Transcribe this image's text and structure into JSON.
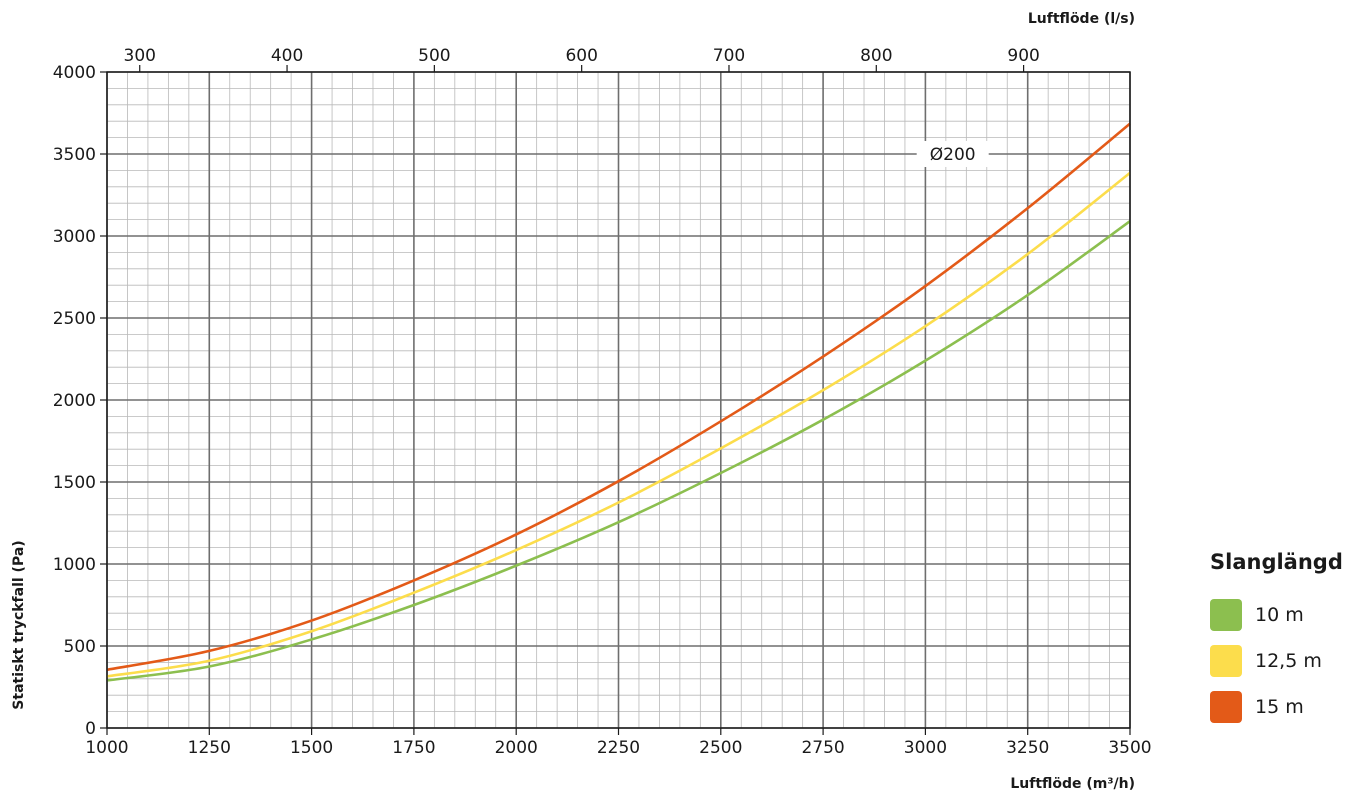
{
  "chart_data": {
    "type": "line",
    "xlabel": "Luftflöde (m³/h)",
    "x2label": "Luftflöde (l/s)",
    "ylabel": "Statiskt tryckfall (Pa)",
    "annotation": "Ø200",
    "xlim": [
      1000,
      3500
    ],
    "ylim": [
      0,
      4000
    ],
    "x2lim_ls": [
      277.78,
      972.22
    ],
    "x_ticks": [
      1000,
      1250,
      1500,
      1750,
      2000,
      2250,
      2500,
      2750,
      3000,
      3250,
      3500
    ],
    "x_tick_labels": [
      "1000",
      "1250",
      "1500",
      "1750",
      "2000",
      "2250",
      "2500",
      "2750",
      "3000",
      "3250",
      "3500"
    ],
    "x2_ticks": [
      300,
      400,
      500,
      600,
      700,
      800,
      900
    ],
    "x2_tick_labels": [
      "300",
      "400",
      "500",
      "600",
      "700",
      "800",
      "900"
    ],
    "y_ticks": [
      0,
      500,
      1000,
      1500,
      2000,
      2500,
      3000,
      3500,
      4000
    ],
    "y_tick_labels": [
      "0",
      "500",
      "1000",
      "1500",
      "2000",
      "2500",
      "3000",
      "3500",
      "4000"
    ],
    "grid": true,
    "legend": {
      "title": "Slanglängd",
      "placement": "right"
    },
    "x": [
      1000,
      1250,
      1500,
      1750,
      2000,
      2250,
      2500,
      2750,
      3000,
      3250,
      3500
    ],
    "series": [
      {
        "name": "10 m",
        "color": "#8cbf4f",
        "values": [
          290,
          375,
          540,
          750,
          990,
          1255,
          1555,
          1880,
          2240,
          2640,
          3090
        ]
      },
      {
        "name": "12,5 m",
        "color": "#fcdd4c",
        "values": [
          315,
          410,
          590,
          825,
          1085,
          1375,
          1705,
          2060,
          2450,
          2890,
          3385
        ]
      },
      {
        "name": "15 m",
        "color": "#e35a18",
        "values": [
          355,
          470,
          655,
          900,
          1180,
          1505,
          1870,
          2265,
          2695,
          3170,
          3685
        ]
      }
    ]
  }
}
